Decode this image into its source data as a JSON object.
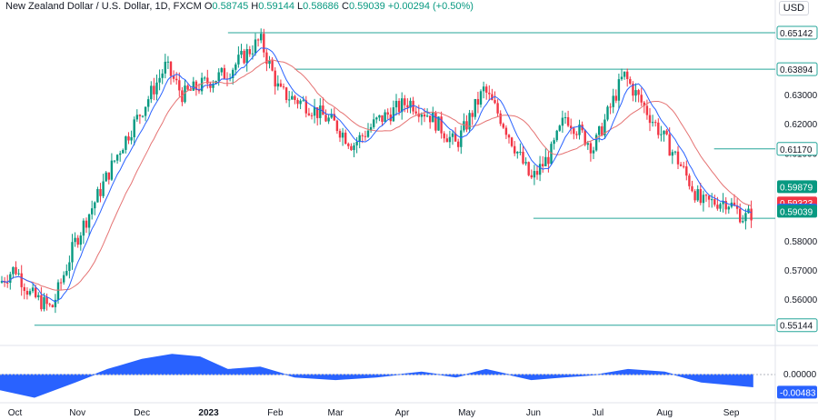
{
  "header": {
    "symbol": "New Zealand Dollar / U.S. Dollar, 1D, FXCM",
    "o_label": "O",
    "o_value": "0.58745",
    "h_label": "H",
    "h_value": "0.59144",
    "l_label": "L",
    "l_value": "0.58686",
    "c_label": "C",
    "c_value": "0.59039",
    "change": "+0.00294 (+0.50%)"
  },
  "currency_label": "USD",
  "colors": {
    "up": "#089981",
    "down": "#f23645",
    "ma_fast": "#2962ff",
    "ma_slow": "#e57373",
    "level": "#26a69a",
    "oscillator": "#2962ff"
  },
  "chart_data": {
    "type": "candlestick",
    "x_tick_labels": [
      "Oct",
      "Nov",
      "Dec",
      "2023",
      "Feb",
      "Mar",
      "Apr",
      "May",
      "Jun",
      "Jul",
      "Aug",
      "Sep"
    ],
    "y_tick_labels": [
      "0.63000",
      "0.62000",
      "0.61000",
      "0.58000",
      "0.57000",
      "0.56000"
    ],
    "ylim": [
      0.547,
      0.657
    ],
    "level_lines": [
      {
        "value": 0.65142,
        "label": "0.65142",
        "from": "2023-01-10"
      },
      {
        "value": 0.63894,
        "label": "0.63894",
        "from": "2023-02-10"
      },
      {
        "value": 0.6117,
        "label": "0.61170",
        "from": "2023-08-24"
      },
      {
        "value": 0.58797,
        "label": "",
        "from": "2023-06-01"
      },
      {
        "value": 0.55144,
        "label": "0.55144",
        "from": "2022-10-12"
      }
    ],
    "price_tags": [
      {
        "value": "0.59879",
        "kind": "level"
      },
      {
        "value": "0.59323",
        "kind": "ma_slow"
      },
      {
        "value": "0.59077",
        "kind": "ma_fast"
      },
      {
        "value": "0.59039",
        "kind": "last"
      }
    ],
    "price_path": [
      [
        "2022-09-26",
        0.566
      ],
      [
        "2022-10-03",
        0.571
      ],
      [
        "2022-10-10",
        0.562
      ],
      [
        "2022-10-20",
        0.557
      ],
      [
        "2022-10-31",
        0.58
      ],
      [
        "2022-11-10",
        0.595
      ],
      [
        "2022-11-21",
        0.612
      ],
      [
        "2022-12-01",
        0.625
      ],
      [
        "2022-12-12",
        0.64
      ],
      [
        "2022-12-20",
        0.63
      ],
      [
        "2022-12-30",
        0.634
      ],
      [
        "2023-01-10",
        0.638
      ],
      [
        "2023-01-25",
        0.649
      ],
      [
        "2023-02-03",
        0.631
      ],
      [
        "2023-02-15",
        0.627
      ],
      [
        "2023-03-01",
        0.62
      ],
      [
        "2023-03-09",
        0.613
      ],
      [
        "2023-03-20",
        0.621
      ],
      [
        "2023-04-04",
        0.628
      ],
      [
        "2023-04-14",
        0.623
      ],
      [
        "2023-04-26",
        0.613
      ],
      [
        "2023-05-09",
        0.632
      ],
      [
        "2023-05-17",
        0.622
      ],
      [
        "2023-05-31",
        0.601
      ],
      [
        "2023-06-09",
        0.61
      ],
      [
        "2023-06-16",
        0.623
      ],
      [
        "2023-06-29",
        0.612
      ],
      [
        "2023-07-13",
        0.637
      ],
      [
        "2023-07-26",
        0.622
      ],
      [
        "2023-08-07",
        0.608
      ],
      [
        "2023-08-18",
        0.593
      ],
      [
        "2023-08-30",
        0.594
      ],
      [
        "2023-09-07",
        0.588
      ],
      [
        "2023-09-11",
        0.59
      ]
    ],
    "oscillator": {
      "last_label": "-0.00483",
      "zero_label": "0.00000",
      "path": [
        [
          "2022-09-26",
          -0.006
        ],
        [
          "2022-10-12",
          -0.009
        ],
        [
          "2022-10-31",
          -0.003
        ],
        [
          "2022-11-15",
          0.002
        ],
        [
          "2022-12-01",
          0.006
        ],
        [
          "2022-12-15",
          0.008
        ],
        [
          "2022-12-28",
          0.007
        ],
        [
          "2023-01-10",
          0.002
        ],
        [
          "2023-01-25",
          0.003
        ],
        [
          "2023-02-10",
          -0.001
        ],
        [
          "2023-03-01",
          -0.002
        ],
        [
          "2023-03-20",
          -0.001
        ],
        [
          "2023-04-10",
          0.001
        ],
        [
          "2023-04-26",
          -0.001
        ],
        [
          "2023-05-10",
          0.002
        ],
        [
          "2023-05-31",
          -0.002
        ],
        [
          "2023-06-15",
          -0.001
        ],
        [
          "2023-07-01",
          0.0
        ],
        [
          "2023-07-15",
          0.002
        ],
        [
          "2023-08-01",
          0.001
        ],
        [
          "2023-08-18",
          -0.003
        ],
        [
          "2023-09-11",
          -0.00483
        ]
      ]
    }
  }
}
